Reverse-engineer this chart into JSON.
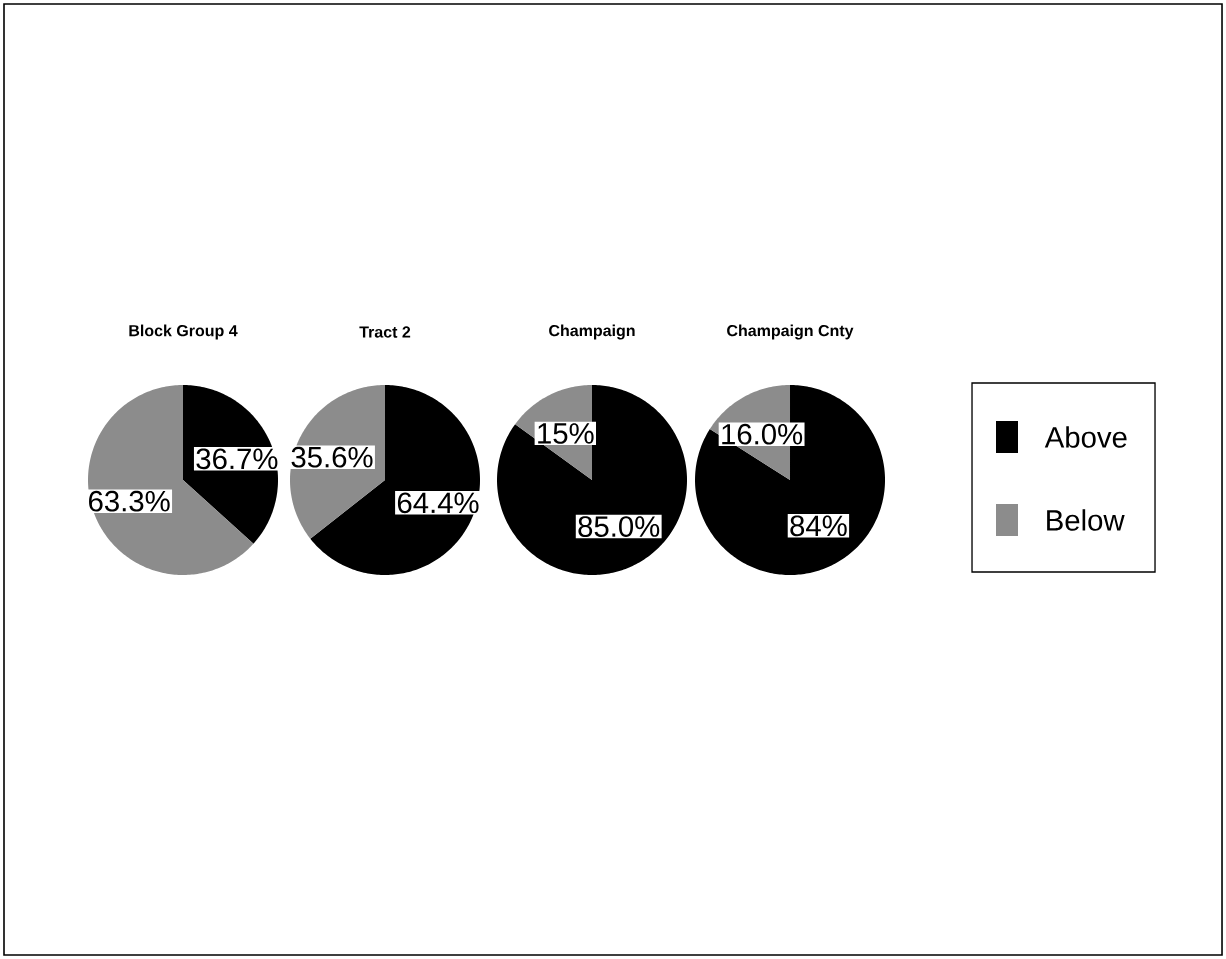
{
  "chart_data": [
    {
      "type": "pie",
      "title": "Block Group 4",
      "categories": [
        null,
        null
      ],
      "values": [
        36.7,
        63.3
      ],
      "colors": [
        "#000000",
        "#8c8c8c"
      ],
      "value_labels": [
        "36.7%",
        "63.3%"
      ]
    },
    {
      "type": "pie",
      "title": "Tract 2",
      "categories": [
        null,
        null
      ],
      "values": [
        64.4,
        35.6
      ],
      "colors": [
        "#000000",
        "#8c8c8c"
      ],
      "value_labels": [
        "64.4%",
        "35.6%"
      ]
    },
    {
      "type": "pie",
      "title": "Champaign",
      "categories": [
        null,
        null
      ],
      "values": [
        85.0,
        15
      ],
      "colors": [
        "#000000",
        "#8c8c8c"
      ],
      "value_labels": [
        "85.0%",
        "15%"
      ]
    },
    {
      "type": "pie",
      "title": "Champaign Cnty",
      "categories": [
        "Above",
        "Below"
      ],
      "values": [
        84,
        16.0
      ],
      "colors": [
        "#000000",
        "#8c8c8c"
      ],
      "value_labels": [
        "84%",
        "16.0%"
      ],
      "legend": "right"
    }
  ]
}
